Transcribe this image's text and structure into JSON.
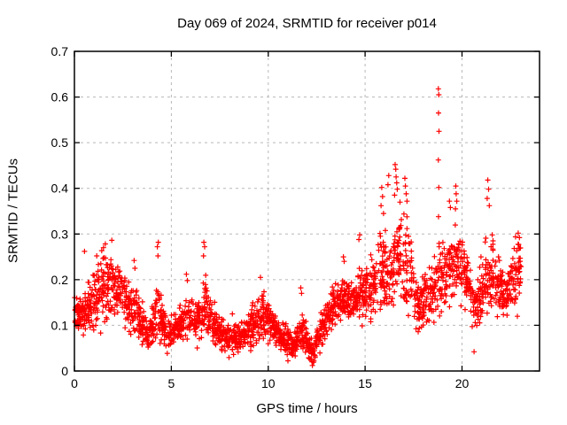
{
  "page": {
    "background": "#ffffff"
  },
  "chart_data": {
    "type": "scatter",
    "title": "Day 069 of 2024, SRMTID for receiver p014",
    "xlabel": "GPS time / hours",
    "ylabel": "SRMTID / TECUs",
    "xlim": [
      0,
      24
    ],
    "ylim": [
      0,
      0.7
    ],
    "xticks": [
      0,
      5,
      10,
      15,
      20
    ],
    "yticks": [
      0,
      0.1,
      0.2,
      0.3,
      0.4,
      0.5,
      0.6,
      0.7
    ],
    "grid": true,
    "grid_style": "dashed",
    "grid_color": "#b8b8b8",
    "border_color": "#000000",
    "legend": null,
    "marker": "plus",
    "marker_color": "#ff0000",
    "seed": 69,
    "series": [
      {
        "name": "SRMTID",
        "note": "dense 30-sec scatter; envelope_bins = [t_start,t_end,min,max,count] read from plot",
        "envelope_bins": [
          [
            0.0,
            0.5,
            0.07,
            0.17,
            58
          ],
          [
            0.5,
            1.0,
            0.08,
            0.2,
            55
          ],
          [
            1.0,
            1.5,
            0.08,
            0.25,
            55
          ],
          [
            1.5,
            2.0,
            0.1,
            0.3,
            58
          ],
          [
            2.0,
            2.5,
            0.1,
            0.26,
            55
          ],
          [
            2.5,
            3.0,
            0.08,
            0.22,
            52
          ],
          [
            3.0,
            3.5,
            0.06,
            0.19,
            52
          ],
          [
            3.5,
            4.0,
            0.04,
            0.12,
            55
          ],
          [
            4.0,
            4.5,
            0.05,
            0.22,
            52
          ],
          [
            4.5,
            5.0,
            0.04,
            0.14,
            55
          ],
          [
            5.0,
            5.5,
            0.05,
            0.13,
            55
          ],
          [
            5.5,
            6.0,
            0.05,
            0.18,
            52
          ],
          [
            6.0,
            6.5,
            0.05,
            0.16,
            52
          ],
          [
            6.5,
            7.0,
            0.06,
            0.24,
            52
          ],
          [
            7.0,
            7.5,
            0.05,
            0.15,
            55
          ],
          [
            7.5,
            8.0,
            0.03,
            0.12,
            55
          ],
          [
            8.0,
            8.5,
            0.03,
            0.11,
            55
          ],
          [
            8.5,
            9.0,
            0.04,
            0.12,
            55
          ],
          [
            9.0,
            9.5,
            0.05,
            0.16,
            55
          ],
          [
            9.5,
            10.0,
            0.06,
            0.19,
            55
          ],
          [
            10.0,
            10.5,
            0.06,
            0.13,
            55
          ],
          [
            10.5,
            11.0,
            0.03,
            0.11,
            55
          ],
          [
            11.0,
            11.5,
            0.02,
            0.09,
            55
          ],
          [
            11.5,
            12.0,
            0.03,
            0.14,
            52
          ],
          [
            12.0,
            12.5,
            0.01,
            0.08,
            48
          ],
          [
            12.5,
            13.0,
            0.04,
            0.13,
            52
          ],
          [
            13.0,
            13.5,
            0.08,
            0.19,
            55
          ],
          [
            13.5,
            14.0,
            0.1,
            0.22,
            55
          ],
          [
            14.0,
            14.5,
            0.1,
            0.2,
            55
          ],
          [
            14.5,
            15.0,
            0.1,
            0.24,
            55
          ],
          [
            15.0,
            15.5,
            0.1,
            0.25,
            55
          ],
          [
            15.5,
            16.0,
            0.12,
            0.32,
            52
          ],
          [
            16.0,
            16.5,
            0.1,
            0.3,
            52
          ],
          [
            16.5,
            17.0,
            0.12,
            0.38,
            50
          ],
          [
            17.0,
            17.5,
            0.1,
            0.33,
            50
          ],
          [
            17.5,
            18.0,
            0.08,
            0.2,
            52
          ],
          [
            18.0,
            18.5,
            0.09,
            0.25,
            50
          ],
          [
            18.5,
            19.0,
            0.08,
            0.3,
            48
          ],
          [
            19.0,
            19.5,
            0.14,
            0.3,
            52
          ],
          [
            19.5,
            20.0,
            0.15,
            0.33,
            52
          ],
          [
            20.0,
            20.5,
            0.12,
            0.3,
            55
          ],
          [
            20.5,
            21.0,
            0.07,
            0.2,
            52
          ],
          [
            21.0,
            21.5,
            0.12,
            0.3,
            50
          ],
          [
            21.5,
            22.0,
            0.12,
            0.28,
            52
          ],
          [
            22.0,
            22.5,
            0.1,
            0.24,
            55
          ],
          [
            22.5,
            23.05,
            0.13,
            0.3,
            60
          ]
        ],
        "outliers": [
          [
            0.52,
            0.262
          ],
          [
            1.15,
            0.252
          ],
          [
            3.08,
            0.242
          ],
          [
            3.12,
            0.225
          ],
          [
            4.28,
            0.272
          ],
          [
            4.33,
            0.282
          ],
          [
            4.31,
            0.252
          ],
          [
            5.78,
            0.212
          ],
          [
            5.83,
            0.198
          ],
          [
            6.68,
            0.282
          ],
          [
            6.72,
            0.272
          ],
          [
            6.66,
            0.252
          ],
          [
            9.6,
            0.205
          ],
          [
            11.68,
            0.182
          ],
          [
            11.72,
            0.17
          ],
          [
            12.28,
            0.012
          ],
          [
            12.36,
            0.022
          ],
          [
            13.88,
            0.25
          ],
          [
            13.92,
            0.24
          ],
          [
            14.68,
            0.288
          ],
          [
            14.72,
            0.298
          ],
          [
            15.82,
            0.362
          ],
          [
            15.86,
            0.402
          ],
          [
            15.9,
            0.382
          ],
          [
            15.95,
            0.345
          ],
          [
            16.18,
            0.408
          ],
          [
            16.22,
            0.428
          ],
          [
            16.52,
            0.385
          ],
          [
            16.55,
            0.452
          ],
          [
            16.58,
            0.442
          ],
          [
            16.6,
            0.425
          ],
          [
            16.63,
            0.412
          ],
          [
            16.66,
            0.398
          ],
          [
            17.05,
            0.422
          ],
          [
            17.08,
            0.405
          ],
          [
            17.12,
            0.388
          ],
          [
            17.16,
            0.372
          ],
          [
            18.78,
            0.618
          ],
          [
            18.8,
            0.605
          ],
          [
            18.79,
            0.565
          ],
          [
            18.81,
            0.525
          ],
          [
            18.78,
            0.462
          ],
          [
            18.8,
            0.402
          ],
          [
            18.79,
            0.338
          ],
          [
            18.82,
            0.272
          ],
          [
            18.8,
            0.205
          ],
          [
            19.35,
            0.372
          ],
          [
            19.4,
            0.358
          ],
          [
            19.66,
            0.355
          ],
          [
            19.68,
            0.405
          ],
          [
            19.7,
            0.388
          ],
          [
            19.73,
            0.372
          ],
          [
            20.62,
            0.042
          ],
          [
            21.3,
            0.378
          ],
          [
            21.33,
            0.418
          ],
          [
            21.37,
            0.398
          ],
          [
            21.41,
            0.362
          ],
          [
            21.56,
            0.298
          ],
          [
            21.6,
            0.285
          ],
          [
            22.9,
            0.302
          ],
          [
            22.96,
            0.292
          ]
        ]
      }
    ]
  }
}
